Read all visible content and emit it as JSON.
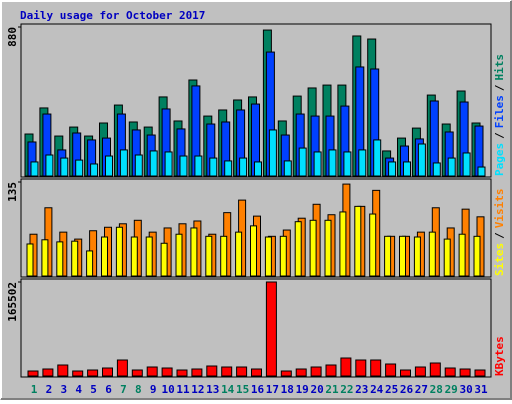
{
  "legend_separator": "/",
  "chart_data": [
    {
      "type": "bar",
      "title": "Daily usage for October 2017",
      "ylim": [
        0,
        880
      ],
      "yticks": [
        880
      ],
      "series": [
        {
          "name": "Hits",
          "color": "#008060",
          "values": [
            248,
            402,
            236,
            289,
            236,
            313,
            419,
            319,
            289,
            467,
            325,
            567,
            354,
            390,
            449,
            467,
            862,
            325,
            472,
            520,
            537,
            537,
            827,
            809,
            148,
            224,
            283,
            478,
            307,
            502,
            313
          ]
        },
        {
          "name": "Files",
          "color": "#0040ff",
          "values": [
            201,
            366,
            154,
            254,
            213,
            224,
            366,
            272,
            242,
            396,
            278,
            532,
            307,
            319,
            390,
            425,
            732,
            242,
            366,
            354,
            354,
            413,
            644,
            632,
            106,
            177,
            219,
            443,
            260,
            437,
            295
          ]
        },
        {
          "name": "Pages",
          "color": "#00e0ff",
          "values": [
            83,
            124,
            106,
            94,
            71,
            118,
            154,
            124,
            148,
            142,
            118,
            118,
            106,
            89,
            106,
            83,
            272,
            89,
            165,
            142,
            154,
            142,
            154,
            213,
            83,
            83,
            189,
            77,
            106,
            136,
            53
          ]
        }
      ]
    },
    {
      "type": "bar",
      "ylim": [
        0,
        135
      ],
      "yticks": [
        135
      ],
      "series": [
        {
          "name": "Visits",
          "color": "#ff8000",
          "values": [
            60,
            98,
            63,
            53,
            65,
            70,
            75,
            80,
            63,
            69,
            75,
            79,
            60,
            91,
            109,
            86,
            57,
            66,
            83,
            103,
            88,
            132,
            100,
            123,
            57,
            57,
            63,
            98,
            69,
            96,
            85
          ]
        },
        {
          "name": "Sites",
          "color": "#ffff00",
          "values": [
            46,
            52,
            49,
            50,
            36,
            56,
            70,
            56,
            56,
            47,
            60,
            69,
            57,
            57,
            63,
            72,
            56,
            57,
            78,
            80,
            80,
            92,
            100,
            89,
            57,
            57,
            56,
            63,
            53,
            60,
            57
          ]
        }
      ]
    },
    {
      "type": "bar",
      "ylim": [
        0,
        165502
      ],
      "yticks": [
        165502
      ],
      "categories": [
        "1",
        "2",
        "3",
        "4",
        "5",
        "6",
        "7",
        "8",
        "9",
        "10",
        "11",
        "12",
        "13",
        "14",
        "15",
        "16",
        "17",
        "18",
        "19",
        "20",
        "21",
        "22",
        "23",
        "24",
        "25",
        "26",
        "27",
        "28",
        "29",
        "30",
        "31"
      ],
      "category_colors": [
        "#008060",
        "#0000c0",
        "#0000c0",
        "#0000c0",
        "#0000c0",
        "#0000c0",
        "#008060",
        "#008060",
        "#0000c0",
        "#0000c0",
        "#0000c0",
        "#0000c0",
        "#0000c0",
        "#008060",
        "#008060",
        "#0000c0",
        "#0000c0",
        "#0000c0",
        "#0000c0",
        "#0000c0",
        "#008060",
        "#008060",
        "#0000c0",
        "#0000c0",
        "#0000c0",
        "#0000c0",
        "#0000c0",
        "#008060",
        "#008060",
        "#0000c0",
        "#0000c0"
      ],
      "series": [
        {
          "name": "KBytes",
          "color": "#ff0000",
          "values": [
            8803,
            12325,
            19367,
            8803,
            10564,
            14085,
            28170,
            10564,
            15846,
            14085,
            10564,
            12325,
            17607,
            15846,
            15846,
            12325,
            165502,
            8803,
            12325,
            15846,
            19367,
            31691,
            28170,
            28170,
            21128,
            10564,
            15846,
            22889,
            14085,
            12325,
            10564
          ]
        }
      ]
    }
  ]
}
